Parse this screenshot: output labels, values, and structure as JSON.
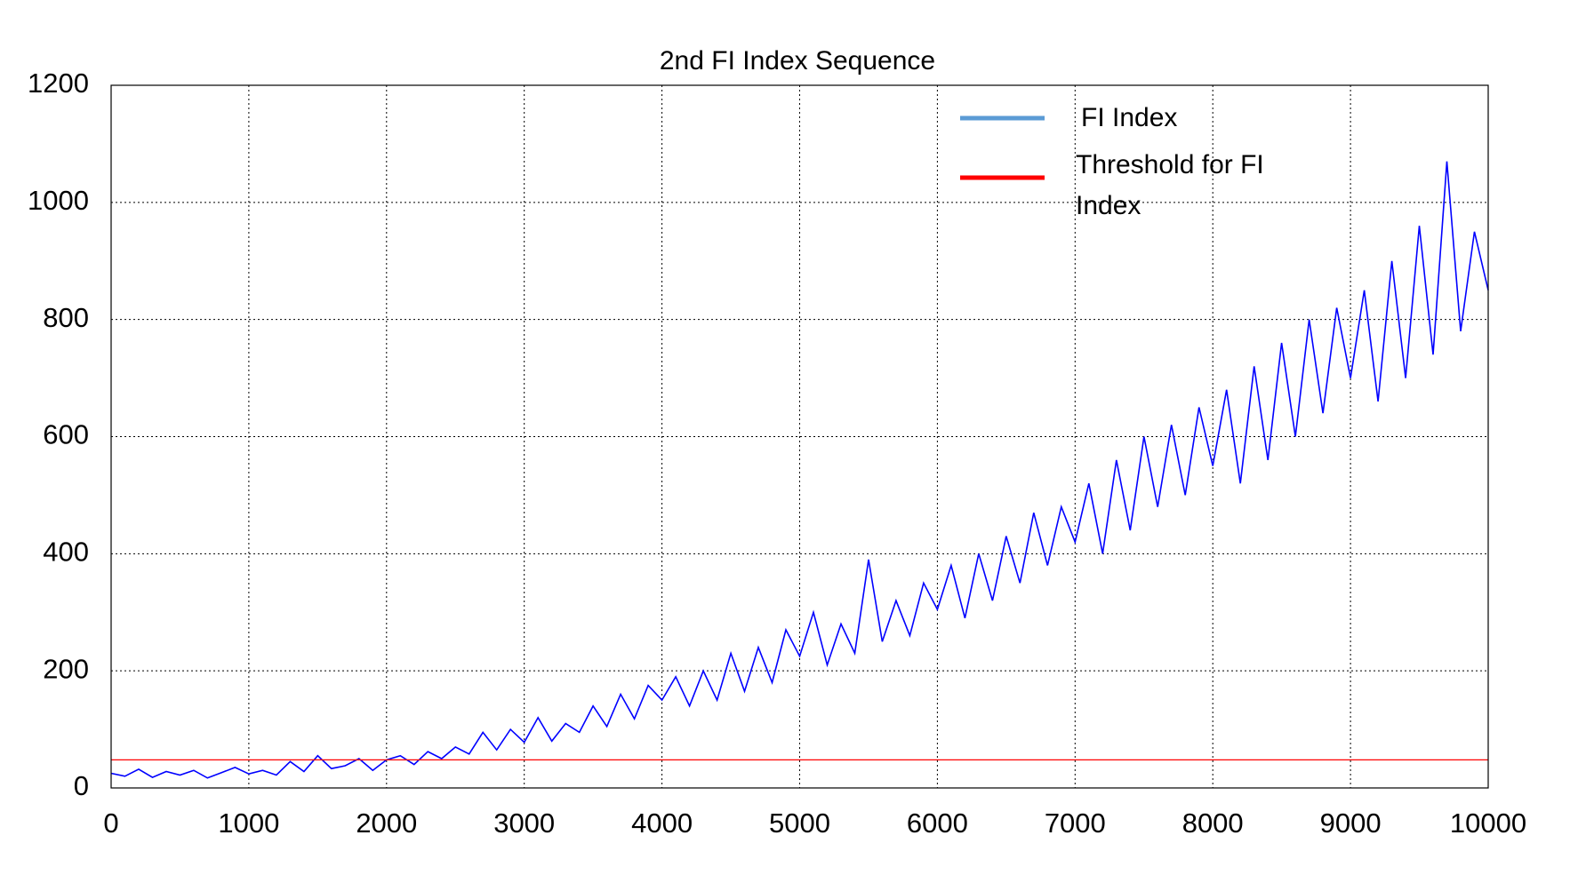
{
  "chart_data": {
    "type": "line",
    "title": "2nd FI Index Sequence",
    "x": [
      0,
      100,
      200,
      300,
      400,
      500,
      600,
      700,
      800,
      900,
      1000,
      1100,
      1200,
      1300,
      1400,
      1500,
      1600,
      1700,
      1800,
      1900,
      2000,
      2100,
      2200,
      2300,
      2400,
      2500,
      2600,
      2700,
      2800,
      2900,
      3000,
      3100,
      3200,
      3300,
      3400,
      3500,
      3600,
      3700,
      3800,
      3900,
      4000,
      4100,
      4200,
      4300,
      4400,
      4500,
      4600,
      4700,
      4800,
      4900,
      5000,
      5100,
      5200,
      5300,
      5400,
      5500,
      5600,
      5700,
      5800,
      5900,
      6000,
      6100,
      6200,
      6300,
      6400,
      6500,
      6600,
      6700,
      6800,
      6900,
      7000,
      7100,
      7200,
      7300,
      7400,
      7500,
      7600,
      7700,
      7800,
      7900,
      8000,
      8100,
      8200,
      8300,
      8400,
      8500,
      8600,
      8700,
      8800,
      8900,
      9000,
      9100,
      9200,
      9300,
      9400,
      9500,
      9600,
      9700,
      9800,
      9900,
      10000
    ],
    "series": [
      {
        "name": "FI Index",
        "color": "#0000ff",
        "legend_color": "#5b9bd5",
        "values": [
          25,
          20,
          32,
          18,
          28,
          22,
          30,
          17,
          26,
          35,
          24,
          30,
          22,
          45,
          28,
          55,
          33,
          38,
          50,
          30,
          48,
          55,
          40,
          62,
          50,
          70,
          58,
          95,
          65,
          100,
          78,
          120,
          80,
          110,
          95,
          140,
          105,
          160,
          118,
          175,
          150,
          190,
          140,
          200,
          150,
          230,
          165,
          240,
          180,
          270,
          225,
          300,
          210,
          280,
          230,
          390,
          250,
          320,
          260,
          350,
          305,
          380,
          290,
          400,
          320,
          430,
          350,
          470,
          380,
          480,
          420,
          520,
          400,
          560,
          440,
          600,
          480,
          620,
          500,
          650,
          550,
          680,
          520,
          720,
          560,
          760,
          600,
          800,
          640,
          820,
          700,
          850,
          660,
          900,
          700,
          960,
          740,
          1070,
          780,
          950,
          850
        ]
      },
      {
        "name": "Threshold for FI Index",
        "color": "#ff0000",
        "legend_color": "#ff0000",
        "values": [
          48,
          48,
          48,
          48,
          48,
          48,
          48,
          48,
          48,
          48,
          48,
          48,
          48,
          48,
          48,
          48,
          48,
          48,
          48,
          48,
          48,
          48,
          48,
          48,
          48,
          48,
          48,
          48,
          48,
          48,
          48,
          48,
          48,
          48,
          48,
          48,
          48,
          48,
          48,
          48,
          48,
          48,
          48,
          48,
          48,
          48,
          48,
          48,
          48,
          48,
          48,
          48,
          48,
          48,
          48,
          48,
          48,
          48,
          48,
          48,
          48,
          48,
          48,
          48,
          48,
          48,
          48,
          48,
          48,
          48,
          48,
          48,
          48,
          48,
          48,
          48,
          48,
          48,
          48,
          48,
          48,
          48,
          48,
          48,
          48,
          48,
          48,
          48,
          48,
          48,
          48,
          48,
          48,
          48,
          48,
          48,
          48,
          48,
          48,
          48,
          48
        ]
      }
    ],
    "xlim": [
      0,
      10000
    ],
    "xticks": [
      0,
      1000,
      2000,
      3000,
      4000,
      5000,
      6000,
      7000,
      8000,
      9000,
      10000
    ],
    "ylim": [
      0,
      1200
    ],
    "yticks": [
      0,
      200,
      400,
      600,
      800,
      1000,
      1200
    ],
    "grid": true
  }
}
